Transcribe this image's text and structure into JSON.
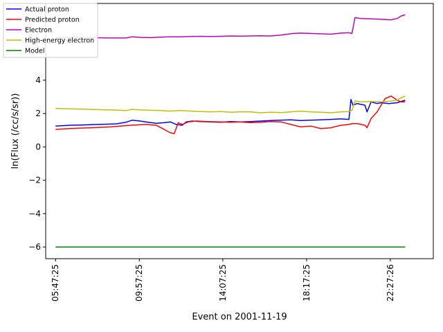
{
  "chart_data": {
    "type": "line",
    "title": "",
    "xlabel": "Event on 2001-11-19",
    "ylabel": "ln(Flux (/cc/s/sr))",
    "x_unit": "hours (time of day)",
    "xlim": [
      5.3,
      24.6
    ],
    "ylim": [
      -6.7,
      8.6
    ],
    "x_ticks": [
      {
        "value": 5.79,
        "label": "05:47:25"
      },
      {
        "value": 9.96,
        "label": "09:57:25"
      },
      {
        "value": 14.12,
        "label": "14:07:25"
      },
      {
        "value": 18.29,
        "label": "18:17:25"
      },
      {
        "value": 22.46,
        "label": "22:27:26"
      }
    ],
    "y_ticks": [
      {
        "value": -6,
        "label": "−6"
      },
      {
        "value": -4,
        "label": "−4"
      },
      {
        "value": -2,
        "label": "−2"
      },
      {
        "value": 0,
        "label": "0"
      },
      {
        "value": 2,
        "label": "2"
      },
      {
        "value": 4,
        "label": "4"
      }
    ],
    "grid": false,
    "legend_position": "top-left",
    "series": [
      {
        "name": "Actual proton",
        "color": "#0000ff",
        "x": [
          5.79,
          6.5,
          7.2,
          8.0,
          8.8,
          9.3,
          9.6,
          10.0,
          10.4,
          10.8,
          11.2,
          11.5,
          11.8,
          12.1,
          12.3,
          12.6,
          13.0,
          13.5,
          14.0,
          14.5,
          15.0,
          15.5,
          16.0,
          16.5,
          17.0,
          17.5,
          18.0,
          18.5,
          19.0,
          19.5,
          20.0,
          20.4,
          20.5,
          20.6,
          20.8,
          21.0,
          21.2,
          21.3,
          21.5,
          21.8,
          22.0,
          22.4,
          22.8,
          23.2
        ],
        "y": [
          1.25,
          1.3,
          1.32,
          1.35,
          1.38,
          1.48,
          1.6,
          1.55,
          1.48,
          1.42,
          1.45,
          1.5,
          1.35,
          1.3,
          1.5,
          1.55,
          1.52,
          1.5,
          1.48,
          1.52,
          1.5,
          1.52,
          1.55,
          1.58,
          1.6,
          1.62,
          1.58,
          1.6,
          1.62,
          1.65,
          1.68,
          1.65,
          2.85,
          2.5,
          2.6,
          2.55,
          2.5,
          2.1,
          2.7,
          2.6,
          2.65,
          2.6,
          2.65,
          2.8
        ]
      },
      {
        "name": "Predicted proton",
        "color": "#ff0000",
        "x": [
          5.79,
          6.5,
          7.5,
          8.5,
          9.5,
          10.3,
          10.8,
          11.2,
          11.5,
          11.7,
          11.9,
          12.1,
          12.4,
          12.8,
          13.3,
          14.0,
          14.5,
          15.0,
          15.5,
          16.0,
          16.5,
          17.0,
          17.5,
          18.0,
          18.5,
          19.0,
          19.5,
          20.0,
          20.4,
          20.6,
          20.8,
          21.0,
          21.2,
          21.3,
          21.5,
          21.8,
          22.2,
          22.5,
          22.8,
          23.0,
          23.2
        ],
        "y": [
          1.05,
          1.1,
          1.15,
          1.2,
          1.3,
          1.35,
          1.3,
          1.05,
          0.85,
          0.8,
          1.45,
          1.35,
          1.5,
          1.55,
          1.52,
          1.5,
          1.48,
          1.5,
          1.45,
          1.48,
          1.52,
          1.5,
          1.35,
          1.2,
          1.25,
          1.1,
          1.15,
          1.3,
          1.35,
          1.4,
          1.4,
          1.35,
          1.3,
          1.15,
          1.7,
          2.1,
          2.9,
          3.05,
          2.8,
          2.7,
          2.7
        ]
      },
      {
        "name": "Electron",
        "color": "#bf00bf",
        "x": [
          5.79,
          6.5,
          7.5,
          8.5,
          9.3,
          9.6,
          10.0,
          10.5,
          11.0,
          11.5,
          12.0,
          12.5,
          13.0,
          13.5,
          14.0,
          14.5,
          15.0,
          15.5,
          16.0,
          16.5,
          17.0,
          17.3,
          17.6,
          18.0,
          18.5,
          19.0,
          19.5,
          20.0,
          20.4,
          20.55,
          20.7,
          21.0,
          21.5,
          22.0,
          22.5,
          22.8,
          23.0,
          23.2
        ],
        "y": [
          6.55,
          6.55,
          6.55,
          6.53,
          6.53,
          6.6,
          6.57,
          6.55,
          6.58,
          6.6,
          6.6,
          6.62,
          6.63,
          6.62,
          6.63,
          6.65,
          6.64,
          6.65,
          6.66,
          6.65,
          6.7,
          6.75,
          6.8,
          6.82,
          6.8,
          6.78,
          6.76,
          6.82,
          6.84,
          6.8,
          7.75,
          7.7,
          7.68,
          7.65,
          7.62,
          7.7,
          7.85,
          7.92
        ]
      },
      {
        "name": "High-energy electron",
        "color": "#bfbf00",
        "x": [
          5.79,
          6.5,
          7.5,
          8.5,
          9.3,
          9.6,
          10.0,
          10.5,
          11.0,
          11.5,
          12.0,
          12.5,
          13.0,
          13.5,
          14.0,
          14.5,
          15.0,
          15.5,
          16.0,
          16.5,
          17.0,
          17.5,
          18.0,
          18.5,
          19.0,
          19.5,
          20.0,
          20.4,
          20.55,
          20.7,
          21.0,
          21.5,
          22.0,
          22.5,
          22.8,
          23.0,
          23.2
        ],
        "y": [
          2.3,
          2.28,
          2.25,
          2.22,
          2.18,
          2.25,
          2.22,
          2.2,
          2.18,
          2.15,
          2.18,
          2.15,
          2.12,
          2.1,
          2.12,
          2.08,
          2.1,
          2.1,
          2.05,
          2.08,
          2.06,
          2.1,
          2.15,
          2.1,
          2.08,
          2.05,
          2.1,
          2.12,
          2.2,
          2.75,
          2.7,
          2.72,
          2.7,
          2.75,
          2.8,
          2.95,
          3.05
        ]
      },
      {
        "name": "Model",
        "color": "#008000",
        "x": [
          5.79,
          23.2
        ],
        "y": [
          -6.0,
          -6.0
        ]
      }
    ]
  }
}
